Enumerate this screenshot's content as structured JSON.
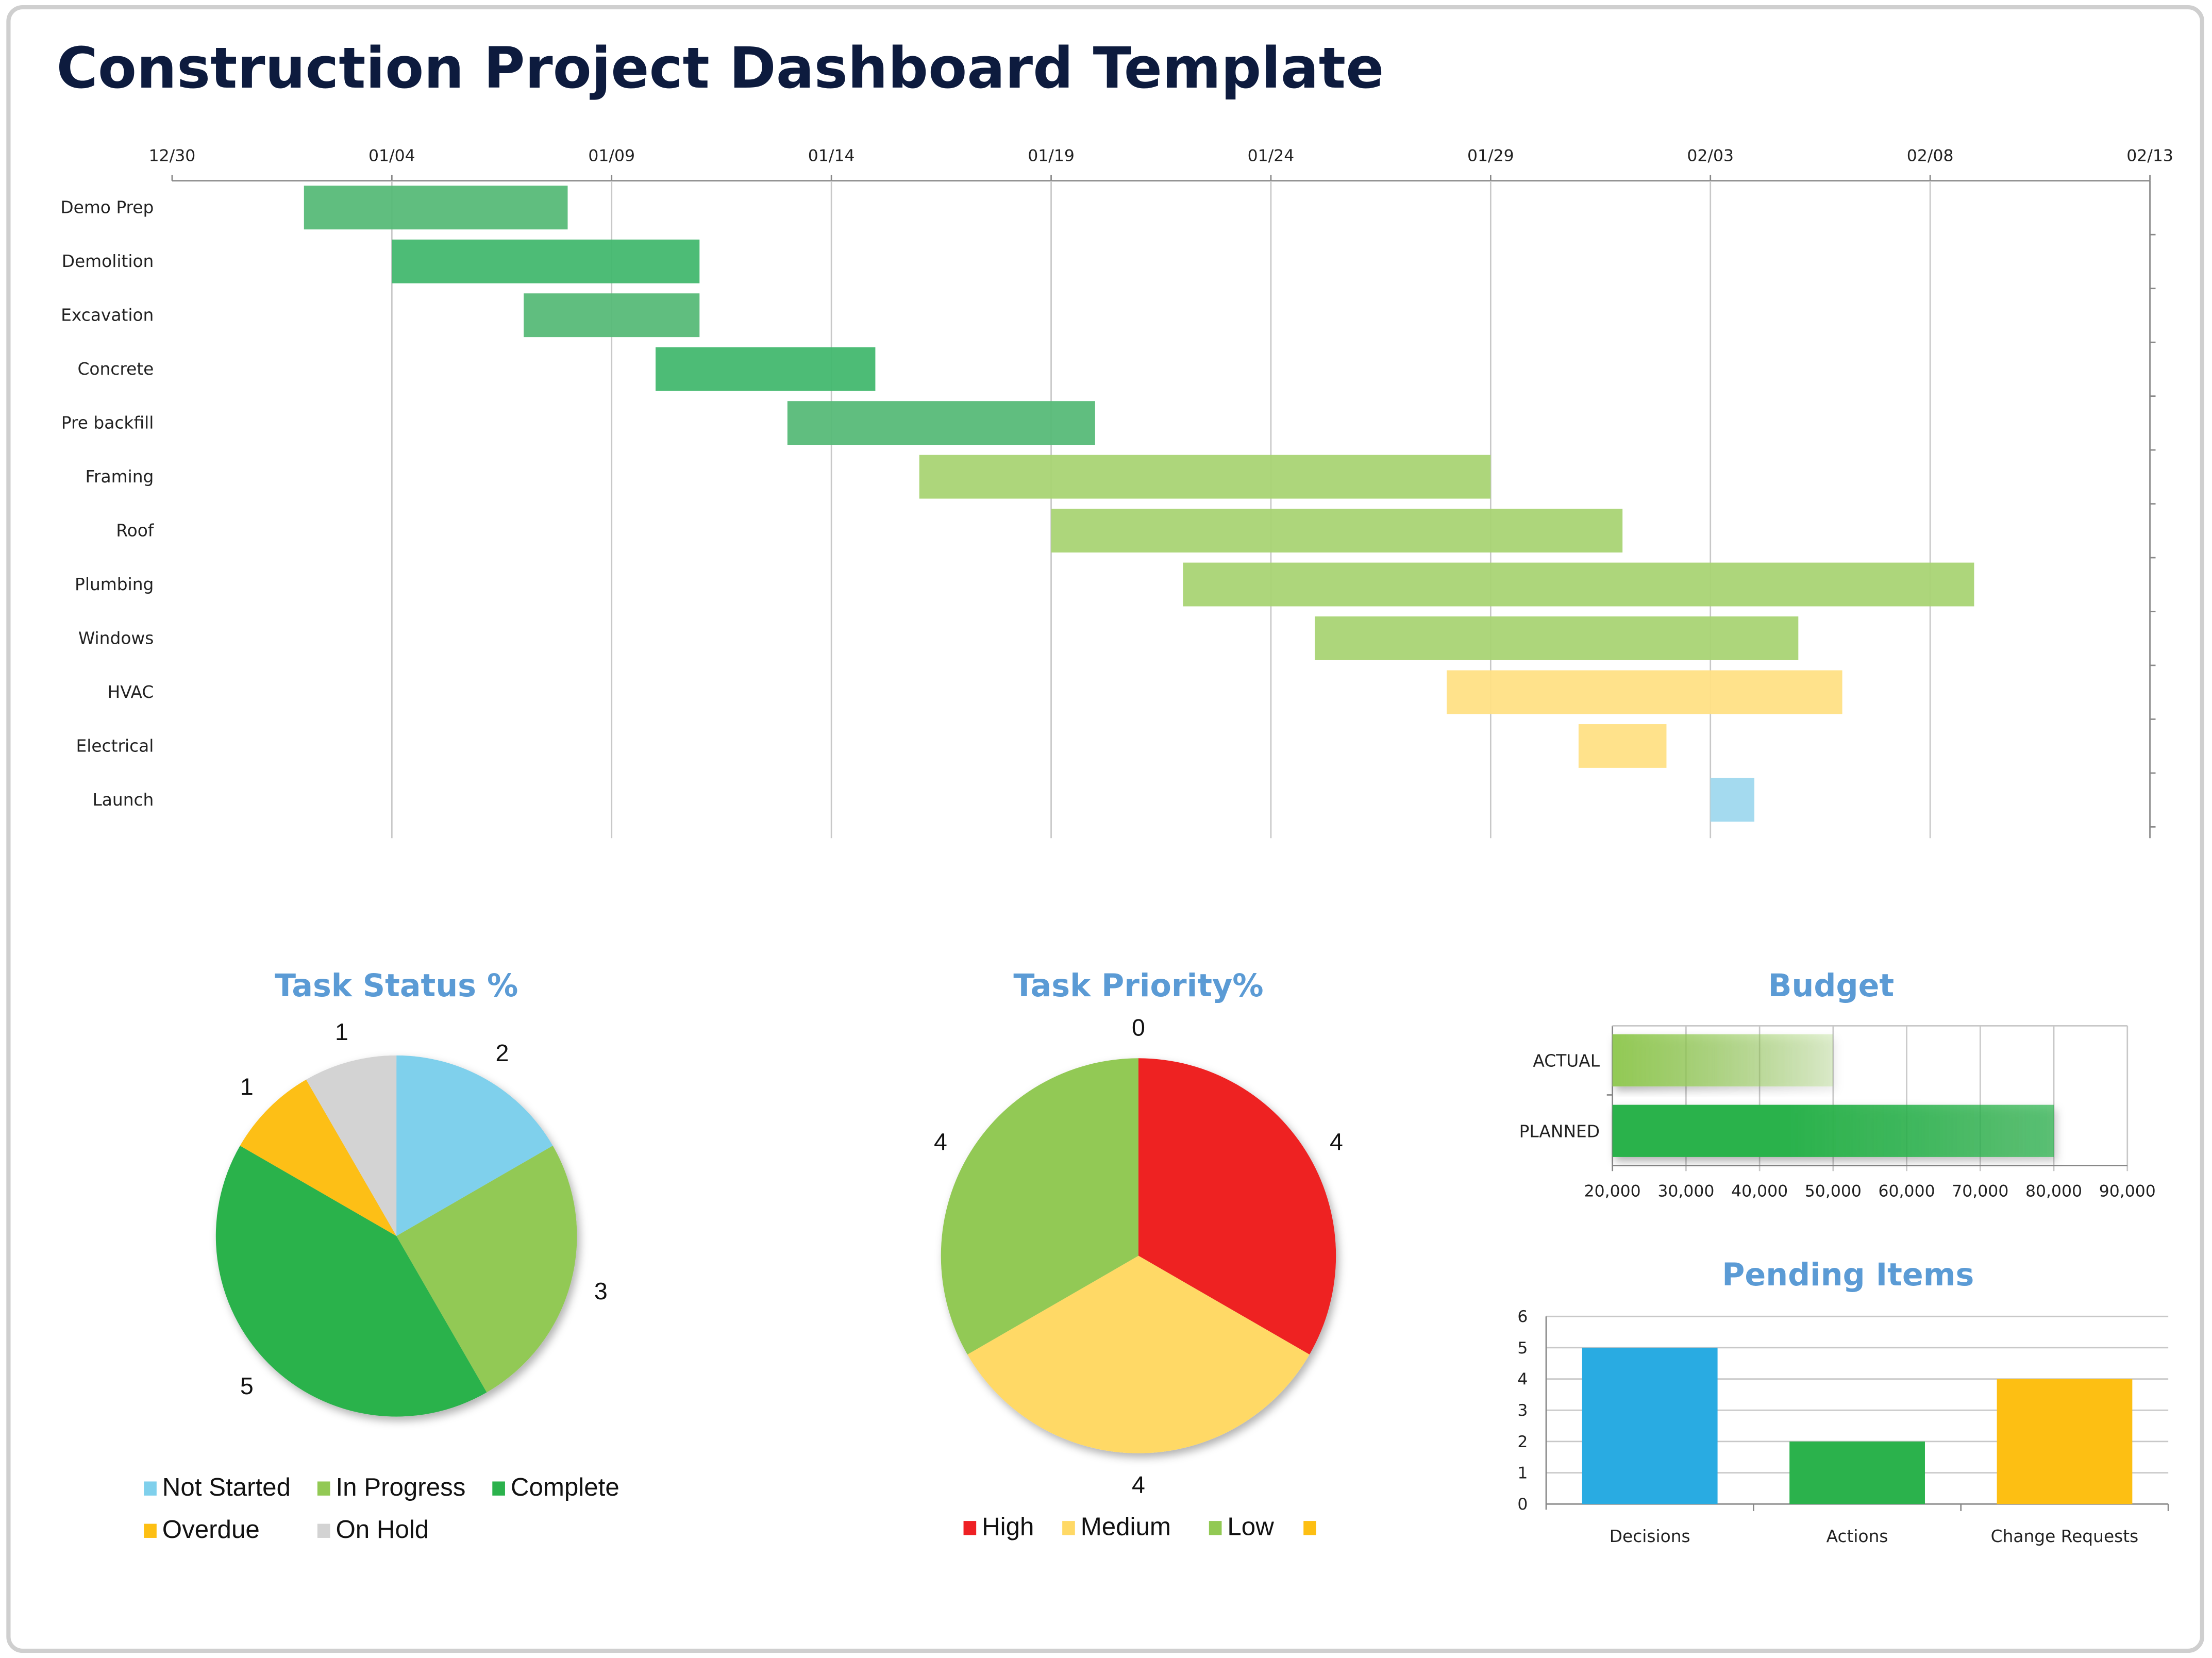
{
  "page_title": "Construction Project Dashboard Template",
  "chart_data": [
    {
      "type": "gantt",
      "x_ticks": [
        "12/30",
        "01/04",
        "01/09",
        "01/14",
        "01/19",
        "01/24",
        "01/29",
        "02/03",
        "02/08",
        "02/13"
      ],
      "xlim": [
        "12/30",
        "02/13"
      ],
      "grid": true,
      "tasks": [
        {
          "name": "Demo Prep",
          "start": "01/02",
          "end": "01/08",
          "color": "#57bb78"
        },
        {
          "name": "Demolition",
          "start": "01/04",
          "end": "01/11",
          "color": "#43b86f"
        },
        {
          "name": "Excavation",
          "start": "01/07",
          "end": "01/11",
          "color": "#57bb78"
        },
        {
          "name": "Concrete",
          "start": "01/10",
          "end": "01/15",
          "color": "#43b86f"
        },
        {
          "name": "Pre backfill",
          "start": "01/13",
          "end": "01/20",
          "color": "#57bb78"
        },
        {
          "name": "Framing",
          "start": "01/16",
          "end": "01/29",
          "color": "#a9d474"
        },
        {
          "name": "Roof",
          "start": "01/19",
          "end": "02/01",
          "color": "#a9d474"
        },
        {
          "name": "Plumbing",
          "start": "01/22",
          "end": "02/09",
          "color": "#a9d474"
        },
        {
          "name": "Windows",
          "start": "01/25",
          "end": "02/05",
          "color": "#a9d474"
        },
        {
          "name": "HVAC",
          "start": "01/28",
          "end": "02/06",
          "color": "#ffe085"
        },
        {
          "name": "Electrical",
          "start": "01/31",
          "end": "02/02",
          "color": "#ffe085"
        },
        {
          "name": "Launch",
          "start": "02/03",
          "end": "02/04",
          "color": "#9fd8ee"
        }
      ]
    },
    {
      "type": "pie",
      "title": "Task Status %",
      "legend": "bottom",
      "slices": [
        {
          "name": "Not Started",
          "value": 2,
          "color": "#7fd0ec"
        },
        {
          "name": "In Progress",
          "value": 3,
          "color": "#92c954"
        },
        {
          "name": "Complete",
          "value": 5,
          "color": "#2bb24c"
        },
        {
          "name": "Overdue",
          "value": 1,
          "color": "#fdbf13"
        },
        {
          "name": "On Hold",
          "value": 1,
          "color": "#d3d3d3"
        }
      ]
    },
    {
      "type": "pie",
      "title": "Task Priority%",
      "legend": "bottom",
      "slices": [
        {
          "name": "High",
          "value": 4,
          "color": "#ee2024"
        },
        {
          "name": "Medium",
          "value": 4,
          "color": "#ffd966"
        },
        {
          "name": "Low",
          "value": 4,
          "color": "#92c954"
        },
        {
          "name": "",
          "value": 0,
          "color": "#fdbf13"
        }
      ]
    },
    {
      "type": "bar",
      "orientation": "horizontal",
      "title": "Budget",
      "categories": [
        "ACTUAL",
        "PLANNED"
      ],
      "values": [
        50000,
        80000
      ],
      "colors": [
        "#92c954",
        "#2bb24c"
      ],
      "xlim": [
        20000,
        90000
      ],
      "x_ticks": [
        "20,000",
        "30,000",
        "40,000",
        "50,000",
        "60,000",
        "70,000",
        "80,000",
        "90,000"
      ],
      "grid": true
    },
    {
      "type": "bar",
      "title": "Pending Items",
      "categories": [
        "Decisions",
        "Actions",
        "Change Requests"
      ],
      "values": [
        5,
        2,
        4
      ],
      "colors": [
        "#29abe2",
        "#2bb24c",
        "#fdbf13"
      ],
      "ylim": [
        0,
        6
      ],
      "y_ticks": [
        "0",
        "1",
        "2",
        "3",
        "4",
        "5",
        "6"
      ],
      "grid": true
    }
  ]
}
